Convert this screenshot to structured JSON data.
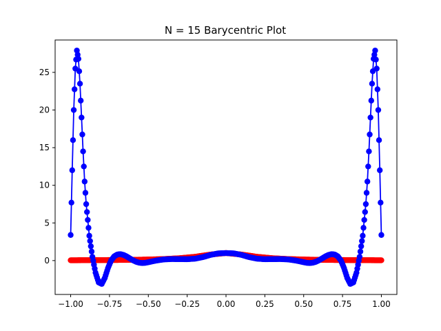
{
  "chart_data": {
    "type": "scatter",
    "title": "N = 15 Barycentric Plot",
    "xlabel": "",
    "ylabel": "",
    "xlim": [
      -1.1,
      1.1
    ],
    "ylim": [
      -4.5,
      29.3
    ],
    "xticks": [
      -1.0,
      -0.75,
      -0.5,
      -0.25,
      0.0,
      0.25,
      0.5,
      0.75,
      1.0
    ],
    "xtick_labels": [
      "−1.00",
      "−0.75",
      "−0.50",
      "−0.25",
      "0.00",
      "0.25",
      "0.50",
      "0.75",
      "1.00"
    ],
    "yticks": [
      0,
      5,
      10,
      15,
      20,
      25
    ],
    "ytick_labels": [
      "0",
      "5",
      "10",
      "15",
      "20",
      "25"
    ],
    "grid": false,
    "series": [
      {
        "color": "#ff0000",
        "style": "markers+line",
        "x": [
          -1.0,
          -0.9,
          -0.8,
          -0.7,
          -0.6,
          -0.5,
          -0.4,
          -0.3,
          -0.2,
          -0.1,
          0.0,
          0.1,
          0.2,
          0.3,
          0.4,
          0.5,
          0.6,
          0.7,
          0.8,
          0.9,
          1.0
        ],
        "y": [
          0.04,
          0.05,
          0.06,
          0.08,
          0.1,
          0.14,
          0.2,
          0.31,
          0.5,
          0.8,
          1.0,
          0.8,
          0.5,
          0.31,
          0.2,
          0.14,
          0.1,
          0.08,
          0.06,
          0.05,
          0.04
        ]
      },
      {
        "color": "#0000ff",
        "style": "markers+line",
        "x": [
          -1.0,
          -0.99,
          -0.98,
          -0.97,
          -0.96,
          -0.95,
          -0.94,
          -0.93,
          -0.92,
          -0.91,
          -0.9,
          -0.88,
          -0.86,
          -0.84,
          -0.82,
          -0.8,
          -0.78,
          -0.76,
          -0.74,
          -0.72,
          -0.7,
          -0.68,
          -0.66,
          -0.64,
          -0.62,
          -0.6,
          -0.58,
          -0.56,
          -0.54,
          -0.52,
          -0.5,
          -0.45,
          -0.4,
          -0.35,
          -0.3,
          -0.25,
          -0.2,
          -0.15,
          -0.1,
          -0.05,
          0.0,
          0.05,
          0.1,
          0.15,
          0.2,
          0.25,
          0.3,
          0.35,
          0.4,
          0.45,
          0.5,
          0.52,
          0.54,
          0.56,
          0.58,
          0.6,
          0.62,
          0.64,
          0.66,
          0.68,
          0.7,
          0.72,
          0.74,
          0.76,
          0.78,
          0.8,
          0.82,
          0.84,
          0.86,
          0.88,
          0.9,
          0.91,
          0.92,
          0.93,
          0.94,
          0.95,
          0.96,
          0.97,
          0.98,
          0.99,
          1.0
        ],
        "y": [
          3.4,
          12.0,
          20.0,
          25.5,
          27.9,
          26.8,
          23.5,
          19.0,
          14.5,
          10.5,
          7.5,
          3.3,
          0.5,
          -1.6,
          -2.9,
          -3.1,
          -2.3,
          -1.0,
          0.0,
          0.55,
          0.8,
          0.85,
          0.75,
          0.55,
          0.3,
          0.05,
          -0.15,
          -0.28,
          -0.33,
          -0.3,
          -0.22,
          0.0,
          0.15,
          0.2,
          0.19,
          0.18,
          0.25,
          0.45,
          0.75,
          0.95,
          1.0,
          0.95,
          0.75,
          0.45,
          0.25,
          0.18,
          0.19,
          0.2,
          0.15,
          0.0,
          -0.22,
          -0.3,
          -0.33,
          -0.28,
          -0.15,
          0.05,
          0.3,
          0.55,
          0.75,
          0.85,
          0.8,
          0.55,
          0.0,
          -1.0,
          -2.3,
          -3.1,
          -2.9,
          -1.6,
          0.5,
          3.3,
          7.5,
          10.5,
          14.5,
          19.0,
          23.5,
          26.8,
          27.9,
          25.5,
          20.0,
          12.0,
          3.4
        ]
      }
    ]
  }
}
